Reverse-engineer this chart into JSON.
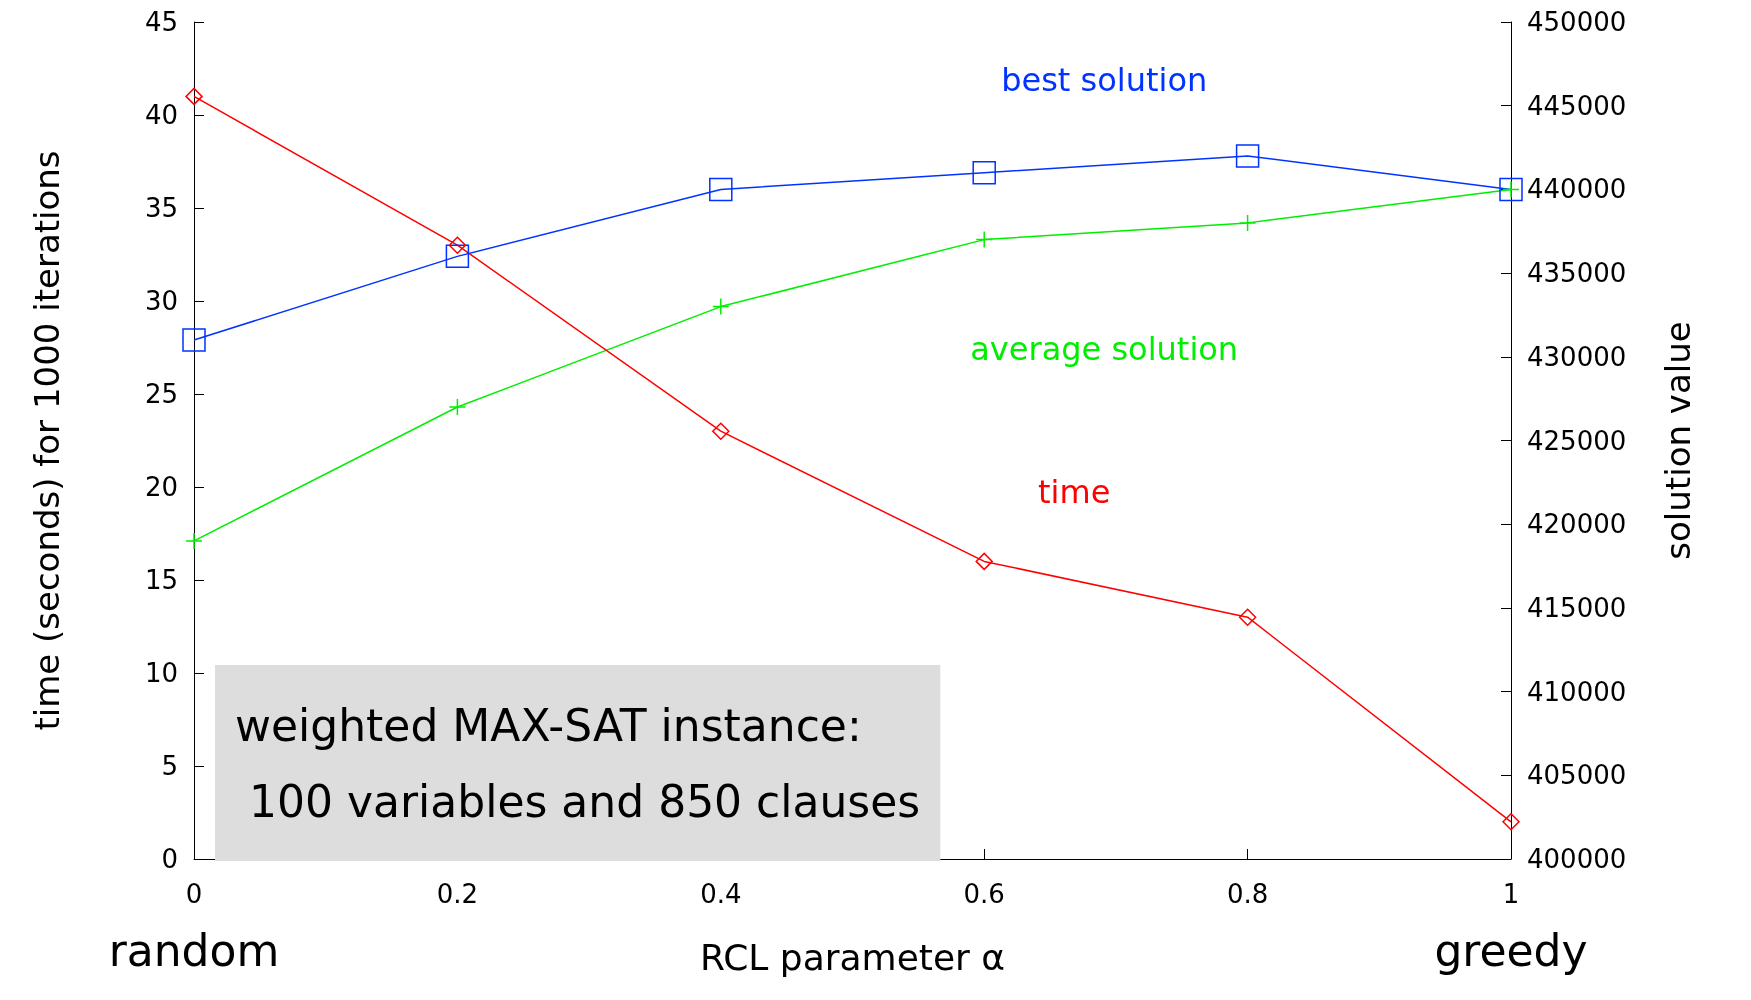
{
  "chart_data": {
    "type": "line",
    "xlabel": "RCL parameter α",
    "ylabel": "time (seconds) for 1000 iterations",
    "y2label": "solution value",
    "x": [
      0,
      0.2,
      0.4,
      0.6,
      0.8,
      1
    ],
    "series": [
      {
        "name": "best solution",
        "color": "#0033ff",
        "axis": "y2",
        "marker": "square",
        "values": [
          431000,
          436000,
          440000,
          441000,
          442000,
          440000
        ]
      },
      {
        "name": "average solution",
        "color": "#00ee00",
        "axis": "y2",
        "marker": "cross",
        "values": [
          419000,
          427000,
          433000,
          437000,
          438000,
          440000
        ]
      },
      {
        "name": "time",
        "color": "#ff0000",
        "axis": "y",
        "marker": "diamond",
        "values": [
          41,
          33,
          23,
          16,
          13,
          2
        ]
      }
    ],
    "xlim": [
      0,
      1
    ],
    "xticks": [
      0,
      0.2,
      0.4,
      0.6,
      0.8,
      1
    ],
    "ylim": [
      0,
      45
    ],
    "yticks": [
      0,
      5,
      10,
      15,
      20,
      25,
      30,
      35,
      40,
      45
    ],
    "y2lim": [
      400000,
      450000
    ],
    "y2ticks": [
      400000,
      405000,
      410000,
      415000,
      420000,
      425000,
      430000,
      435000,
      440000,
      445000,
      450000
    ],
    "grid": false,
    "legend": false,
    "annotations": [
      "weighted MAX-SAT instance:\n 100 variables and 850 clauses",
      "random",
      "greedy"
    ]
  }
}
